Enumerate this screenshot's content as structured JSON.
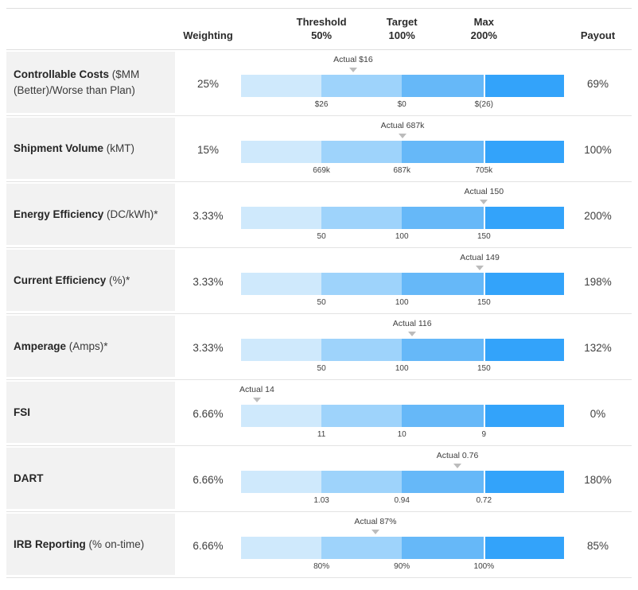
{
  "header": {
    "weighting": "Weighting",
    "threshold": "Threshold\n50%",
    "target": "Target\n100%",
    "max": "Max\n200%",
    "payout": "Payout"
  },
  "colors": {
    "segment_light": "#cfe9fc",
    "segment_medium_light": "#9ed3fb",
    "segment_medium": "#66b8f8",
    "segment_bright": "#33a3fa",
    "label_cell_bg": "#f2f2f2",
    "row_border": "#e3e3e3",
    "marker_triangle": "#bcbcbc"
  },
  "chart_data": {
    "type": "bullet",
    "columns": [
      "Weighting",
      "Threshold 50%",
      "Target 100%",
      "Max 200%",
      "Payout"
    ],
    "segment_colors": [
      "#cfe9fc",
      "#9ed3fb",
      "#66b8f8",
      "#33a3fa"
    ],
    "rows": [
      {
        "metric": "Controllable Costs",
        "unit": "($MM (Better)/Worse than Plan)",
        "weighting": "25%",
        "actual_label": "Actual $16",
        "actual_value": 16,
        "ticks": [
          "$26",
          "$0",
          "$(26)"
        ],
        "payout": "69%",
        "marker_pct": 34.7
      },
      {
        "metric": "Shipment Volume",
        "unit": "(kMT)",
        "weighting": "15%",
        "actual_label": "Actual 687k",
        "actual_value": 687,
        "ticks": [
          "669k",
          "687k",
          "705k"
        ],
        "payout": "100%",
        "marker_pct": 50.0
      },
      {
        "metric": "Energy Efficiency",
        "unit": "(DC/kWh)*",
        "weighting": "3.33%",
        "actual_label": "Actual 150",
        "actual_value": 150,
        "ticks": [
          "50",
          "100",
          "150"
        ],
        "payout": "200%",
        "marker_pct": 75.2
      },
      {
        "metric": "Current Efficiency",
        "unit": "(%)*",
        "weighting": "3.33%",
        "actual_label": "Actual 149",
        "actual_value": 149,
        "ticks": [
          "50",
          "100",
          "150"
        ],
        "payout": "198%",
        "marker_pct": 73.9
      },
      {
        "metric": "Amperage",
        "unit": "(Amps)*",
        "weighting": "3.33%",
        "actual_label": "Actual 116",
        "actual_value": 116,
        "ticks": [
          "50",
          "100",
          "150"
        ],
        "payout": "132%",
        "marker_pct": 53.0
      },
      {
        "metric": "FSI",
        "unit": "",
        "weighting": "6.66%",
        "actual_label": "Actual 14",
        "actual_value": 14,
        "ticks": [
          "11",
          "10",
          "9"
        ],
        "payout": "0%",
        "marker_pct": 4.9
      },
      {
        "metric": "DART",
        "unit": "",
        "weighting": "6.66%",
        "actual_label": "Actual 0.76",
        "actual_value": 0.76,
        "ticks": [
          "1.03",
          "0.94",
          "0.72"
        ],
        "payout": "180%",
        "marker_pct": 67.0
      },
      {
        "metric": "IRB Reporting",
        "unit": "(% on-time)",
        "weighting": "6.66%",
        "actual_label": "Actual 87%",
        "actual_value": 87,
        "ticks": [
          "80%",
          "90%",
          "100%"
        ],
        "payout": "85%",
        "marker_pct": 41.6
      }
    ]
  }
}
